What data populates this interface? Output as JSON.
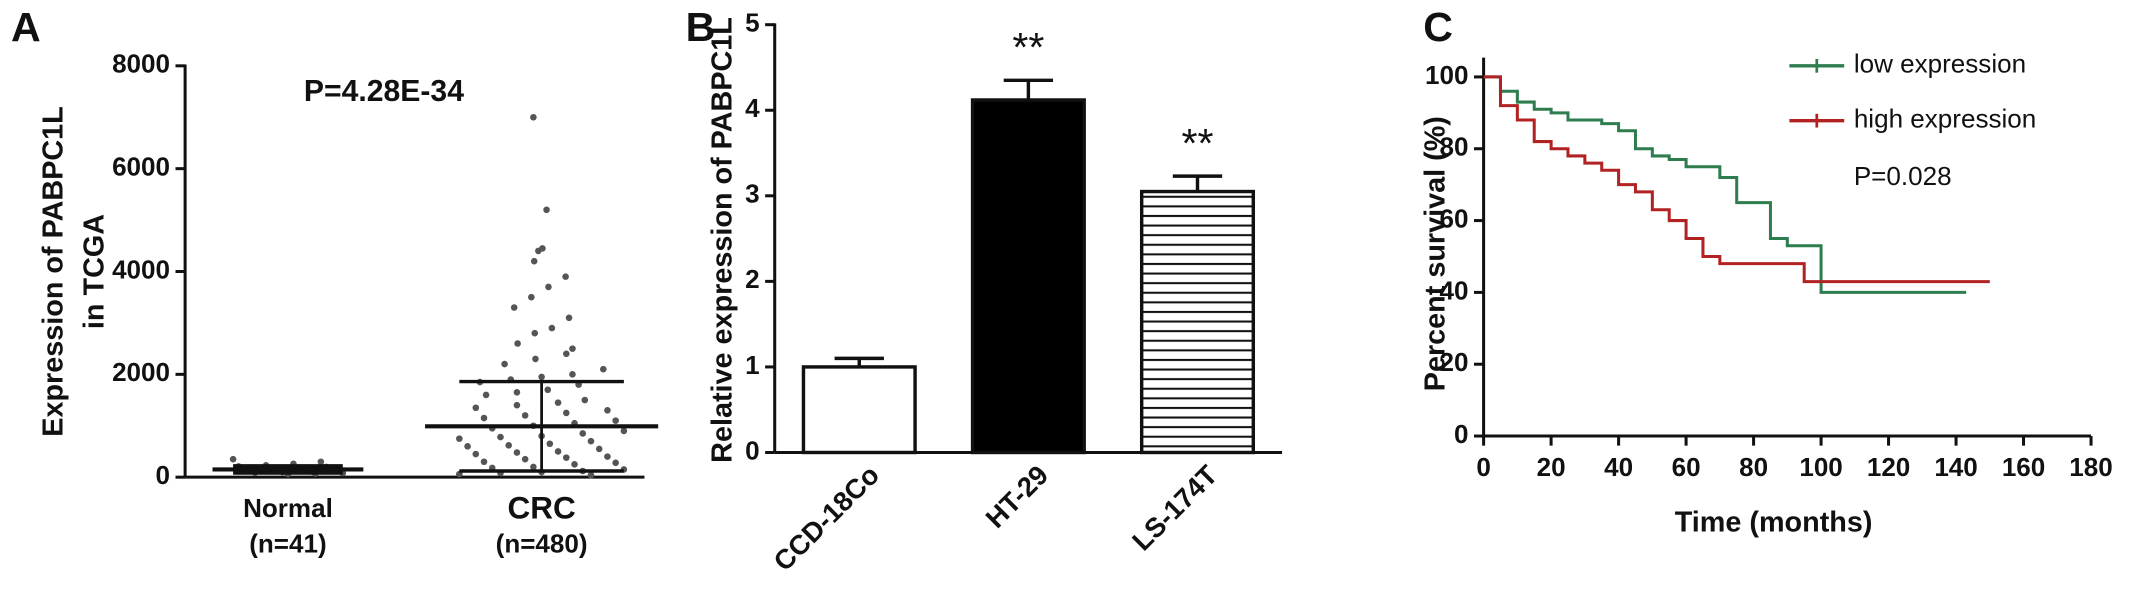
{
  "chart_data": [
    {
      "type": "dot",
      "panel_label": "A",
      "ylabel": [
        "Expression of PABPC1L",
        "in TCGA"
      ],
      "annotation": "P=4.28E-34",
      "categories": [
        "Normal",
        "CRC"
      ],
      "category_sublabels": [
        "(n=41)",
        "(n=480)"
      ],
      "values": [
        [
          350,
          300,
          260,
          230,
          210,
          200,
          190,
          180,
          170,
          160,
          150,
          140,
          130,
          120,
          110,
          100,
          90,
          80,
          70,
          60
        ],
        [
          7000,
          5200,
          4450,
          4400,
          4200,
          3900,
          3700,
          3500,
          3300,
          3100,
          2900,
          2800,
          2600,
          2500,
          2400,
          2300,
          2200,
          2100,
          2000,
          1950,
          1900,
          1850,
          1800,
          1700,
          1650,
          1600,
          1500,
          1450,
          1400,
          1350,
          1300,
          1250,
          1200,
          1150,
          1100,
          1050,
          1000,
          950,
          900,
          850,
          800,
          780,
          750,
          700,
          650,
          620,
          600,
          550,
          500,
          480,
          450,
          400,
          380,
          350,
          300,
          280,
          250,
          200,
          180,
          150,
          120,
          100,
          80,
          60,
          40
        ]
      ],
      "means": [
        150,
        990
      ],
      "sd": [
        70,
        870
      ],
      "color": "#555555",
      "ylim": [
        0,
        8000
      ],
      "yticks": [
        0,
        2000,
        4000,
        6000,
        8000
      ]
    },
    {
      "type": "bar",
      "panel_label": "B",
      "ylabel": "Relative expression of PABPC1L",
      "categories": [
        "CCD-18Co",
        "HT-29",
        "LS-174T"
      ],
      "values": [
        1.0,
        4.12,
        3.05
      ],
      "errors": [
        0.1,
        0.23,
        0.18
      ],
      "significance": [
        null,
        "**",
        "**"
      ],
      "fills": [
        "white",
        "black",
        "hatch"
      ],
      "ylim": [
        0,
        5
      ],
      "yticks": [
        0,
        1,
        2,
        3,
        4,
        5
      ]
    },
    {
      "type": "line",
      "panel_label": "C",
      "step": true,
      "xlabel": "Time (months)",
      "ylabel": "Percent survival (%)",
      "annotation": "P=0.028",
      "series": [
        {
          "name": "low expression",
          "color": "#2e7d4f",
          "x": [
            0,
            5,
            10,
            15,
            20,
            25,
            30,
            35,
            40,
            45,
            50,
            55,
            60,
            65,
            70,
            75,
            80,
            85,
            90,
            95,
            100,
            105,
            110,
            120,
            130,
            140,
            143
          ],
          "values": [
            100,
            96,
            93,
            91,
            90,
            88,
            88,
            87,
            85,
            80,
            78,
            77,
            75,
            75,
            72,
            65,
            65,
            55,
            53,
            53,
            40,
            40,
            40,
            40,
            40,
            40,
            40
          ]
        },
        {
          "name": "high expression",
          "color": "#b22222",
          "x": [
            0,
            5,
            10,
            15,
            20,
            25,
            30,
            35,
            40,
            45,
            50,
            55,
            60,
            65,
            70,
            80,
            90,
            95,
            100,
            110,
            120,
            130,
            140,
            150
          ],
          "values": [
            100,
            92,
            88,
            82,
            80,
            78,
            76,
            74,
            70,
            68,
            63,
            60,
            55,
            50,
            48,
            48,
            48,
            43,
            43,
            43,
            43,
            43,
            43,
            43
          ]
        }
      ],
      "xlim": [
        0,
        180
      ],
      "xticks": [
        0,
        20,
        40,
        60,
        80,
        100,
        120,
        140,
        160,
        180
      ],
      "ylim": [
        0,
        105
      ],
      "yticks": [
        0,
        20,
        40,
        60,
        80,
        100
      ]
    }
  ]
}
